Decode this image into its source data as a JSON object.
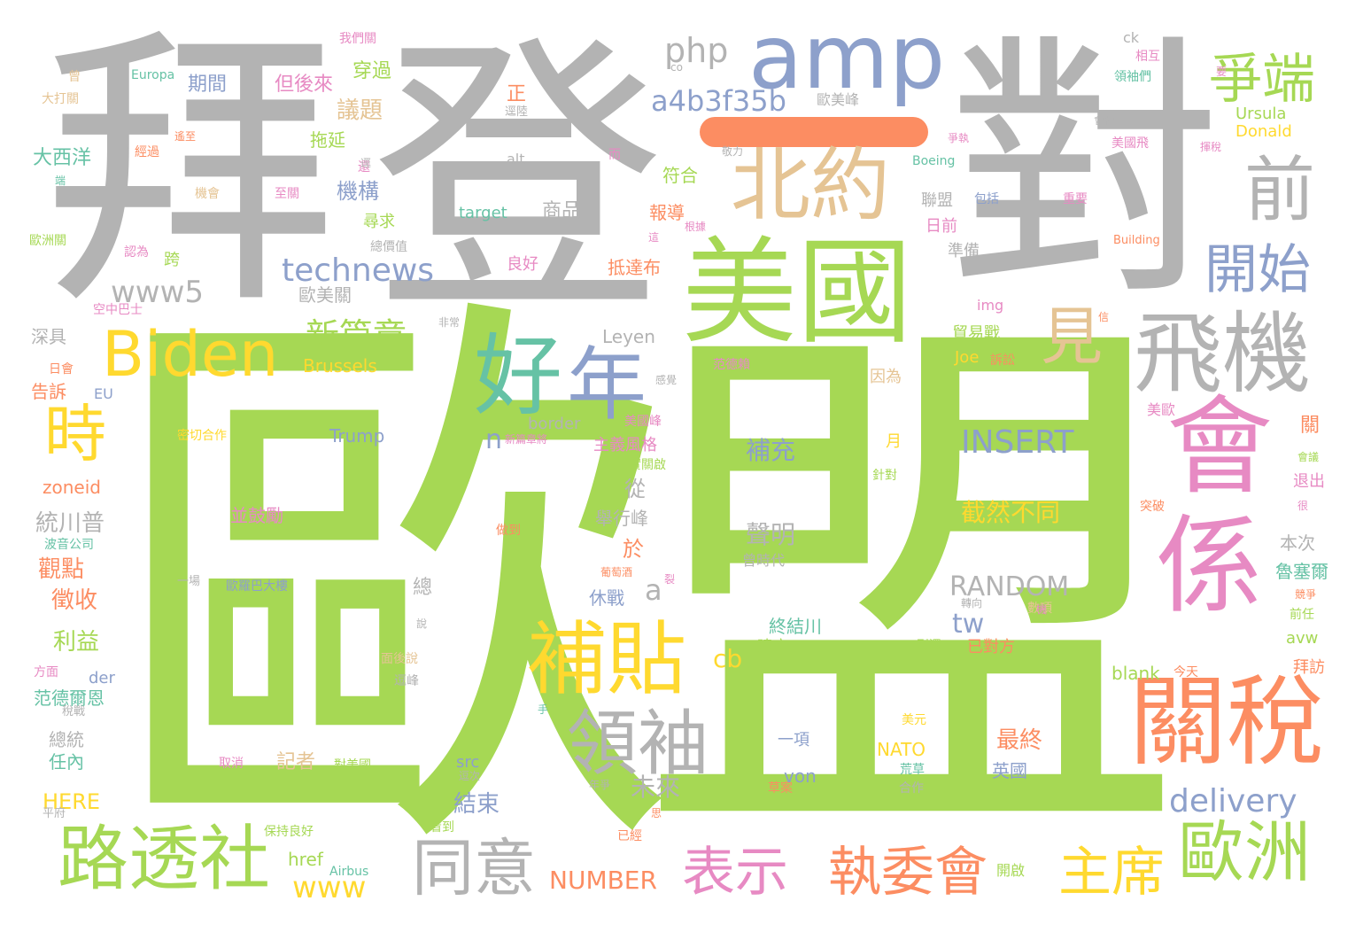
{
  "cloud": {
    "colors": {
      "green": "#a6d854",
      "gray": "#b3b3b3",
      "blue": "#8da0cb",
      "pink": "#e78ac3",
      "orange": "#fc8d62",
      "yellow": "#ffd92f",
      "teal": "#66c2a5",
      "tan": "#e5c494"
    },
    "words": [
      {
        "text": "歐",
        "color": "green"
      },
      {
        "text": "盟",
        "color": "green"
      },
      {
        "text": "拜",
        "color": "gray"
      },
      {
        "text": "登",
        "color": "gray"
      },
      {
        "text": "對",
        "color": "gray"
      },
      {
        "text": "amp",
        "color": "blue"
      },
      {
        "text": "美國",
        "color": "green"
      },
      {
        "text": "北約",
        "color": "tan"
      },
      {
        "text": "前",
        "color": "gray"
      },
      {
        "text": "會",
        "color": "pink"
      },
      {
        "text": "係",
        "color": "pink"
      },
      {
        "text": "關稅",
        "color": "orange"
      },
      {
        "text": "飛機",
        "color": "gray"
      },
      {
        "text": "好",
        "color": "teal"
      },
      {
        "text": "年",
        "color": "blue"
      },
      {
        "text": "Biden",
        "color": "yellow"
      },
      {
        "text": "補貼",
        "color": "yellow"
      },
      {
        "text": "路透社",
        "color": "green"
      },
      {
        "text": "領袖",
        "color": "gray"
      },
      {
        "text": "同意",
        "color": "gray"
      },
      {
        "text": "歐洲",
        "color": "green"
      },
      {
        "text": "表示",
        "color": "pink"
      },
      {
        "text": "執委會",
        "color": "orange"
      },
      {
        "text": "主席",
        "color": "yellow"
      },
      {
        "text": "爭端",
        "color": "green"
      },
      {
        "text": "開始",
        "color": "blue"
      },
      {
        "text": "見",
        "color": "tan"
      },
      {
        "text": "時",
        "color": "yellow"
      },
      {
        "text": "technews",
        "color": "blue"
      },
      {
        "text": "www5",
        "color": "gray"
      },
      {
        "text": "php",
        "color": "gray"
      },
      {
        "text": "a4b3f35b",
        "color": "blue"
      },
      {
        "text": "新篇章",
        "color": "green"
      },
      {
        "text": "INSERT",
        "color": "blue"
      },
      {
        "text": "delivery",
        "color": "blue"
      },
      {
        "text": "RANDOM",
        "color": "gray"
      },
      {
        "text": "截然不同",
        "color": "yellow"
      },
      {
        "text": "NUMBER",
        "color": "orange"
      },
      {
        "text": "www",
        "color": "yellow"
      },
      {
        "text": "tw",
        "color": "blue"
      },
      {
        "text": "cb",
        "color": "yellow"
      },
      {
        "text": "a",
        "color": "gray"
      },
      {
        "text": "n",
        "color": "blue"
      },
      {
        "text": "補充",
        "color": "blue"
      },
      {
        "text": "聲明",
        "color": "gray"
      },
      {
        "text": "最終",
        "color": "orange"
      },
      {
        "text": "英國",
        "color": "blue"
      },
      {
        "text": "未來",
        "color": "gray"
      },
      {
        "text": "結束",
        "color": "blue"
      },
      {
        "text": "記者",
        "color": "tan"
      },
      {
        "text": "觀點",
        "color": "orange"
      },
      {
        "text": "徵收",
        "color": "orange"
      },
      {
        "text": "利益",
        "color": "green"
      },
      {
        "text": "統川普",
        "color": "gray"
      },
      {
        "text": "商品",
        "color": "gray"
      },
      {
        "text": "target",
        "color": "teal"
      },
      {
        "text": "議題",
        "color": "tan"
      },
      {
        "text": "機構",
        "color": "blue"
      },
      {
        "text": "期間",
        "color": "blue"
      },
      {
        "text": "穿過",
        "color": "green"
      },
      {
        "text": "但後來",
        "color": "pink"
      },
      {
        "text": "拖延",
        "color": "green"
      },
      {
        "text": "大西洋",
        "color": "teal"
      },
      {
        "text": "深具",
        "color": "gray"
      },
      {
        "text": "告訴",
        "color": "orange"
      },
      {
        "text": "zoneid",
        "color": "orange"
      },
      {
        "text": "HERE",
        "color": "yellow"
      },
      {
        "text": "任內",
        "color": "teal"
      },
      {
        "text": "總統",
        "color": "gray"
      },
      {
        "text": "范德爾恩",
        "color": "teal"
      },
      {
        "text": "Trump",
        "color": "blue"
      },
      {
        "text": "Brussels",
        "color": "yellow"
      },
      {
        "text": "Leyen",
        "color": "gray"
      },
      {
        "text": "href",
        "color": "green"
      },
      {
        "text": "src",
        "color": "blue"
      },
      {
        "text": "blank",
        "color": "green"
      },
      {
        "text": "avw",
        "color": "green"
      },
      {
        "text": "img",
        "color": "pink"
      },
      {
        "text": "alt",
        "color": "gray"
      },
      {
        "text": "border",
        "color": "gray"
      },
      {
        "text": "der",
        "color": "blue"
      },
      {
        "text": "EU",
        "color": "blue"
      },
      {
        "text": "von",
        "color": "blue"
      },
      {
        "text": "NATO",
        "color": "yellow"
      },
      {
        "text": "Joe",
        "color": "yellow"
      },
      {
        "text": "Ursula",
        "color": "green"
      },
      {
        "text": "Donald",
        "color": "yellow"
      },
      {
        "text": "ck",
        "color": "gray"
      },
      {
        "text": "歐美峰",
        "color": "gray"
      },
      {
        "text": "聯盟",
        "color": "gray"
      },
      {
        "text": "日前",
        "color": "pink"
      },
      {
        "text": "準備",
        "color": "gray"
      },
      {
        "text": "貿易戰",
        "color": "green"
      },
      {
        "text": "因為",
        "color": "tan"
      },
      {
        "text": "已對方",
        "color": "orange"
      },
      {
        "text": "建立",
        "color": "green"
      },
      {
        "text": "終結川",
        "color": "teal"
      },
      {
        "text": "休戰",
        "color": "blue"
      },
      {
        "text": "舉行峰",
        "color": "gray"
      },
      {
        "text": "於",
        "color": "orange"
      },
      {
        "text": "從",
        "color": "gray"
      },
      {
        "text": "總",
        "color": "gray"
      },
      {
        "text": "並鼓勵",
        "color": "pink"
      },
      {
        "text": "主義風格",
        "color": "pink"
      },
      {
        "text": "報導",
        "color": "orange"
      },
      {
        "text": "抵達布",
        "color": "orange"
      },
      {
        "text": "符合",
        "color": "green"
      },
      {
        "text": "歐美關",
        "color": "gray"
      },
      {
        "text": "跨",
        "color": "green"
      },
      {
        "text": "尋求",
        "color": "green"
      },
      {
        "text": "良好",
        "color": "pink"
      },
      {
        "text": "月",
        "color": "yellow"
      },
      {
        "text": "關",
        "color": "orange"
      },
      {
        "text": "退出",
        "color": "pink"
      },
      {
        "text": "拜訪",
        "color": "orange"
      },
      {
        "text": "美歐",
        "color": "pink"
      },
      {
        "text": "魯塞爾",
        "color": "teal"
      },
      {
        "text": "本次",
        "color": "gray"
      },
      {
        "text": "相互",
        "color": "pink"
      },
      {
        "text": "領袖們",
        "color": "teal"
      },
      {
        "text": "美國飛",
        "color": "pink"
      },
      {
        "text": "包括",
        "color": "blue"
      },
      {
        "text": "重要",
        "color": "pink"
      },
      {
        "text": "Boeing",
        "color": "teal"
      },
      {
        "text": "Building",
        "color": "orange"
      },
      {
        "text": "Europa",
        "color": "teal"
      },
      {
        "text": "大打關",
        "color": "tan"
      },
      {
        "text": "歐洲關",
        "color": "green"
      },
      {
        "text": "空中巴士",
        "color": "pink"
      },
      {
        "text": "密切合作",
        "color": "yellow"
      },
      {
        "text": "波音公司",
        "color": "teal"
      },
      {
        "text": "歐羅巴大樓",
        "color": "blue"
      },
      {
        "text": "保持良好",
        "color": "green"
      },
      {
        "text": "對美國",
        "color": "green"
      },
      {
        "text": "取消",
        "color": "pink"
      },
      {
        "text": "Airbus",
        "color": "teal"
      },
      {
        "text": "開啟",
        "color": "green"
      },
      {
        "text": "看到",
        "color": "green"
      },
      {
        "text": "已經",
        "color": "orange"
      },
      {
        "text": "草案",
        "color": "orange"
      },
      {
        "text": "美元",
        "color": "yellow"
      },
      {
        "text": "荒草",
        "color": "teal"
      },
      {
        "text": "合作",
        "color": "gray"
      },
      {
        "text": "今天",
        "color": "orange"
      },
      {
        "text": "前任",
        "color": "green"
      },
      {
        "text": "突破",
        "color": "orange"
      },
      {
        "text": "一項",
        "color": "blue"
      },
      {
        "text": "針對",
        "color": "green"
      },
      {
        "text": "實關啟",
        "color": "green"
      },
      {
        "text": "美國峰",
        "color": "pink"
      },
      {
        "text": "轉向",
        "color": "gray"
      },
      {
        "text": "數項",
        "color": "tan"
      },
      {
        "text": "新篇章將",
        "color": "pink"
      },
      {
        "text": "烈還",
        "color": "green"
      },
      {
        "text": "面後說",
        "color": "tan"
      },
      {
        "text": "逗峰",
        "color": "gray"
      },
      {
        "text": "范德賴",
        "color": "pink"
      },
      {
        "text": "方面",
        "color": "pink"
      },
      {
        "text": "我們關",
        "color": "pink"
      },
      {
        "text": "正",
        "color": "orange"
      },
      {
        "text": "逕陸",
        "color": "gray"
      },
      {
        "text": "至關",
        "color": "pink"
      },
      {
        "text": "機會",
        "color": "tan"
      },
      {
        "text": "經過",
        "color": "orange"
      },
      {
        "text": "認為",
        "color": "pink"
      },
      {
        "text": "會會",
        "color": "gray"
      },
      {
        "text": "爭執",
        "color": "pink"
      },
      {
        "text": "揮稅",
        "color": "pink"
      },
      {
        "text": "一場",
        "color": "gray"
      },
      {
        "text": "平府",
        "color": "gray"
      },
      {
        "text": "年爭",
        "color": "gray"
      },
      {
        "text": "思",
        "color": "orange"
      },
      {
        "text": "說",
        "color": "gray"
      },
      {
        "text": "非常",
        "color": "gray"
      },
      {
        "text": "感覺",
        "color": "gray"
      },
      {
        "text": "日會",
        "color": "orange"
      },
      {
        "text": "稅戰",
        "color": "gray"
      },
      {
        "text": "逗次",
        "color": "gray"
      },
      {
        "text": "葡萄酒",
        "color": "orange"
      },
      {
        "text": "總價值",
        "color": "gray"
      },
      {
        "text": "根據",
        "color": "pink"
      },
      {
        "text": "做到",
        "color": "orange"
      },
      {
        "text": "要",
        "color": "pink"
      },
      {
        "text": "遙至",
        "color": "orange"
      },
      {
        "text": "這",
        "color": "pink"
      },
      {
        "text": "而",
        "color": "pink"
      },
      {
        "text": "還",
        "color": "pink"
      },
      {
        "text": "曾",
        "color": "tan"
      },
      {
        "text": "端",
        "color": "teal"
      },
      {
        "text": "會議",
        "color": "green"
      },
      {
        "text": "信",
        "color": "orange"
      },
      {
        "text": "很",
        "color": "pink"
      },
      {
        "text": "競爭",
        "color": "orange"
      },
      {
        "text": "訴訟",
        "color": "orange"
      },
      {
        "text": "手",
        "color": "teal"
      },
      {
        "text": "機",
        "color": "pink"
      },
      {
        "text": "裂",
        "color": "pink"
      },
      {
        "text": "逕",
        "color": "gray"
      },
      {
        "text": "敬力",
        "color": "gray"
      },
      {
        "text": "co",
        "color": "gray"
      },
      {
        "text": "曾時代",
        "color": "gray"
      }
    ]
  }
}
